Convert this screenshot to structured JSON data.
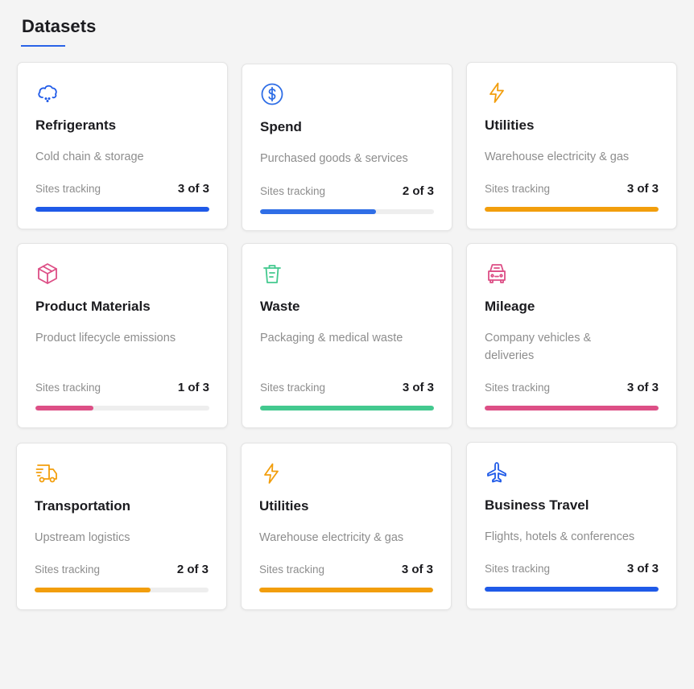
{
  "page": {
    "title": "Datasets"
  },
  "cards": [
    {
      "name": "Refrigerants",
      "desc": "Cold chain & storage",
      "track_label": "Sites tracking",
      "count": "3 of 3",
      "fraction": 1.0,
      "color": "#1f5ae8",
      "icon": "cloud-snow-icon"
    },
    {
      "name": "Spend",
      "desc": "Purchased goods & services",
      "track_label": "Sites tracking",
      "count": "2 of 3",
      "fraction": 0.667,
      "color": "#2f6ee6",
      "icon": "dollar-circle-icon"
    },
    {
      "name": "Utilities",
      "desc": "Warehouse electricity & gas",
      "track_label": "Sites tracking",
      "count": "3 of 3",
      "fraction": 1.0,
      "color": "#f29e0c",
      "icon": "lightning-icon"
    },
    {
      "name": "Product Materials",
      "desc": "Product lifecycle emissions",
      "track_label": "Sites tracking",
      "count": "1 of 3",
      "fraction": 0.333,
      "color": "#dd4f86",
      "icon": "box-icon"
    },
    {
      "name": "Waste",
      "desc": "Packaging & medical waste",
      "track_label": "Sites tracking",
      "count": "3 of 3",
      "fraction": 1.0,
      "color": "#43c98f",
      "icon": "trash-icon"
    },
    {
      "name": "Mileage",
      "desc": "Company vehicles & deliveries",
      "track_label": "Sites tracking",
      "count": "3 of 3",
      "fraction": 1.0,
      "color": "#dd4f86",
      "icon": "car-icon"
    },
    {
      "name": "Transportation",
      "desc": "Upstream logistics",
      "track_label": "Sites tracking",
      "count": "2 of 3",
      "fraction": 0.667,
      "color": "#f29e0c",
      "icon": "truck-icon"
    },
    {
      "name": "Utilities",
      "desc": "Warehouse electricity & gas",
      "track_label": "Sites tracking",
      "count": "3 of 3",
      "fraction": 1.0,
      "color": "#f29e0c",
      "icon": "lightning-icon"
    },
    {
      "name": "Business Travel",
      "desc": "Flights, hotels & conferences",
      "track_label": "Sites tracking",
      "count": "3 of 3",
      "fraction": 1.0,
      "color": "#1f5ae8",
      "icon": "airplane-icon"
    }
  ]
}
